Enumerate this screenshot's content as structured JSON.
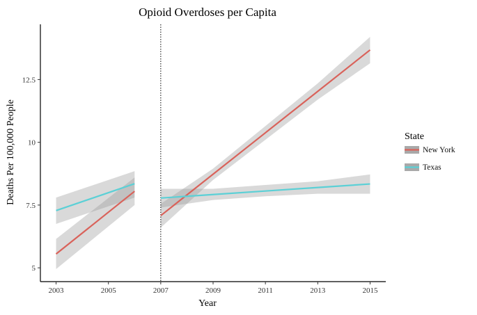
{
  "chart_data": {
    "type": "line",
    "title": "Opioid Overdoses per Capita",
    "xlabel": "Year",
    "ylabel": "Deaths Per 100,000 People",
    "xlim": [
      2002.4,
      2015.6
    ],
    "ylim": [
      4.45,
      14.7
    ],
    "x_ticks": [
      2003,
      2005,
      2007,
      2009,
      2011,
      2013,
      2015
    ],
    "y_ticks": [
      5,
      7.5,
      10,
      12.5
    ],
    "y_tick_labels": [
      "5",
      "7.5",
      "10",
      "12.5"
    ],
    "grid": false,
    "vertical_reference_line": {
      "x": 2007,
      "style": "dotted"
    },
    "legend": {
      "title": "State",
      "placement": "right"
    },
    "series": [
      {
        "name": "New York",
        "color": "#d9625a",
        "segments": [
          {
            "x": [
              2003,
              2006
            ],
            "y": [
              5.55,
              8.05
            ],
            "band_low": [
              4.95,
              7.5
            ],
            "band_high": [
              6.15,
              8.6
            ]
          },
          {
            "x": [
              2007,
              2009,
              2011,
              2013,
              2015
            ],
            "y": [
              7.08,
              8.73,
              10.38,
              12.03,
              13.68
            ],
            "band_low": [
              6.6,
              8.5,
              10.1,
              11.7,
              13.15
            ],
            "band_high": [
              7.55,
              8.95,
              10.65,
              12.35,
              14.2
            ]
          }
        ]
      },
      {
        "name": "Texas",
        "color": "#5bd0d6",
        "segments": [
          {
            "x": [
              2003,
              2006
            ],
            "y": [
              7.28,
              8.35
            ],
            "band_low": [
              6.75,
              7.8
            ],
            "band_high": [
              7.8,
              8.85
            ]
          },
          {
            "x": [
              2007,
              2009,
              2011,
              2013,
              2015
            ],
            "y": [
              7.78,
              7.92,
              8.06,
              8.2,
              8.34
            ],
            "band_low": [
              7.4,
              7.7,
              7.85,
              7.95,
              7.95
            ],
            "band_high": [
              8.15,
              8.15,
              8.3,
              8.45,
              8.72
            ]
          }
        ]
      }
    ]
  }
}
